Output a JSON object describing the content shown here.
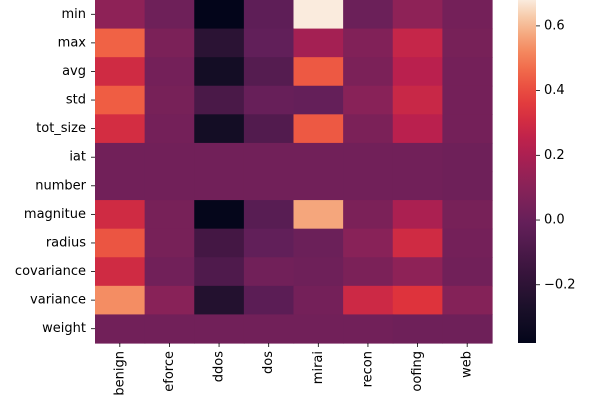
{
  "chart_data": {
    "type": "heatmap",
    "rows": [
      "min",
      "max",
      "avg",
      "std",
      "tot_size",
      "iat",
      "number",
      "magnitue",
      "radius",
      "covariance",
      "variance",
      "weight"
    ],
    "columns": [
      "benign",
      "bruteforce",
      "ddos",
      "dos",
      "mirai",
      "recon",
      "spoofing",
      "web"
    ],
    "visible_column_labels": [
      "benign",
      "eforce",
      "ddos",
      "dos",
      "mirai",
      "recon",
      "oofing",
      "web"
    ],
    "values": [
      [
        0.12,
        0.02,
        -0.38,
        -0.03,
        0.68,
        0.01,
        0.12,
        0.04
      ],
      [
        0.45,
        0.06,
        -0.21,
        -0.02,
        0.18,
        0.08,
        0.27,
        0.05
      ],
      [
        0.3,
        0.04,
        -0.3,
        -0.06,
        0.43,
        0.06,
        0.24,
        0.04
      ],
      [
        0.44,
        0.05,
        -0.1,
        0.0,
        -0.01,
        0.1,
        0.28,
        0.04
      ],
      [
        0.31,
        0.04,
        -0.3,
        -0.07,
        0.43,
        0.06,
        0.24,
        0.04
      ],
      [
        0.03,
        0.03,
        0.03,
        0.03,
        0.03,
        0.03,
        0.03,
        0.02
      ],
      [
        0.03,
        0.03,
        0.03,
        0.03,
        0.03,
        0.03,
        0.03,
        0.02
      ],
      [
        0.3,
        0.05,
        -0.37,
        -0.05,
        0.57,
        0.06,
        0.2,
        0.05
      ],
      [
        0.42,
        0.05,
        -0.12,
        -0.02,
        0.01,
        0.1,
        0.3,
        0.04
      ],
      [
        0.3,
        0.03,
        -0.08,
        0.03,
        0.02,
        0.06,
        0.12,
        0.03
      ],
      [
        0.53,
        0.1,
        -0.24,
        -0.04,
        0.04,
        0.29,
        0.34,
        0.09
      ],
      [
        0.03,
        0.03,
        0.03,
        0.03,
        0.03,
        0.03,
        0.02,
        0.02
      ]
    ],
    "colorbar": {
      "range": [
        -0.38,
        0.68
      ],
      "ticks": [
        -0.2,
        0.0,
        0.2,
        0.4,
        0.6
      ],
      "tick_labels": [
        "−0.2",
        "0.0",
        "0.2",
        "0.4",
        "0.6"
      ]
    },
    "title": "",
    "xlabel": "",
    "ylabel": "",
    "grid": false
  }
}
